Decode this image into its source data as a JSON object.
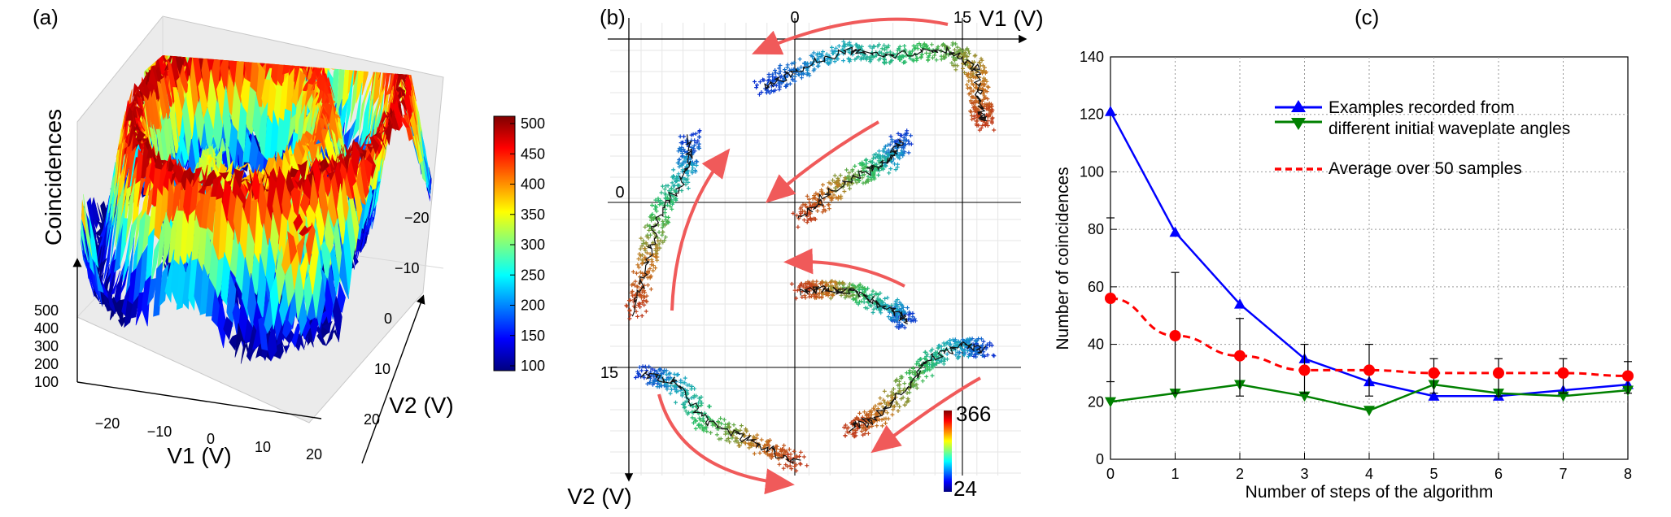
{
  "panels": {
    "a": {
      "label": "(a)",
      "zlabel": "Coincidences",
      "xlabel": "V1 (V)",
      "ylabel": "V2 (V)",
      "x_ticks": [
        "−20",
        "−10",
        "0",
        "10",
        "20"
      ],
      "y_ticks": [
        "−20",
        "−10",
        "0",
        "10",
        "20"
      ],
      "z_ticks": [
        "500",
        "400",
        "300",
        "200",
        "100"
      ],
      "colorbar_ticks": [
        "500",
        "450",
        "400",
        "350",
        "300",
        "250",
        "200",
        "150",
        "100"
      ],
      "colormap": [
        "#00007f",
        "#0000ff",
        "#007fff",
        "#00ffff",
        "#7fff7f",
        "#ffff00",
        "#ff7f00",
        "#ff0000",
        "#7f0000"
      ]
    },
    "b": {
      "label": "(b)",
      "xlabel": "V1 (V)",
      "ylabel": "V2 (V)",
      "x_ticks": [
        "0",
        "15"
      ],
      "y_ticks": [
        "0",
        "15"
      ],
      "colorbar_max": "366",
      "colorbar_min": "24",
      "arrow_color": "#f05a5a",
      "trace_colors": [
        "#0a2fd0",
        "#1aa6c8",
        "#2cbf5a",
        "#c47a1e",
        "#c0391b"
      ]
    },
    "c": {
      "label": "(c)",
      "xlabel": "Number of steps of the algorithm",
      "ylabel": "Number of coincidences",
      "x_ticks": [
        "0",
        "1",
        "2",
        "3",
        "4",
        "5",
        "6",
        "7",
        "8"
      ],
      "y_ticks": [
        "0",
        "20",
        "40",
        "60",
        "80",
        "100",
        "120",
        "140"
      ],
      "legend": {
        "line1": "Examples recorded from",
        "line2": "different initial waveplate angles",
        "line3": "Average over 50 samples"
      }
    }
  },
  "chart_data": {
    "type": "line",
    "title": "",
    "xlabel": "Number of steps of the algorithm",
    "ylabel": "Number of coincidences",
    "x": [
      0,
      1,
      2,
      3,
      4,
      5,
      6,
      7,
      8
    ],
    "xlim": [
      0,
      8
    ],
    "ylim": [
      0,
      140
    ],
    "grid": true,
    "series": [
      {
        "name": "Examples recorded from different initial waveplate angles (blue)",
        "color": "#0000ff",
        "marker": "triangle-up",
        "values": [
          121,
          79,
          54,
          35,
          27,
          22,
          22,
          24,
          26
        ]
      },
      {
        "name": "Examples recorded from different initial waveplate angles (green)",
        "color": "#008000",
        "marker": "triangle-down",
        "values": [
          20,
          23,
          26,
          22,
          17,
          26,
          23,
          22,
          24
        ]
      },
      {
        "name": "Average over 50 samples",
        "color": "#ff0000",
        "marker": "circle",
        "dashed": true,
        "values": [
          56,
          43,
          36,
          31,
          31,
          30,
          30,
          30,
          29
        ],
        "error_low": [
          27,
          23,
          22,
          23,
          22,
          23,
          22,
          23,
          23
        ],
        "error_high": [
          84,
          65,
          49,
          40,
          40,
          35,
          35,
          35,
          34
        ]
      }
    ]
  }
}
